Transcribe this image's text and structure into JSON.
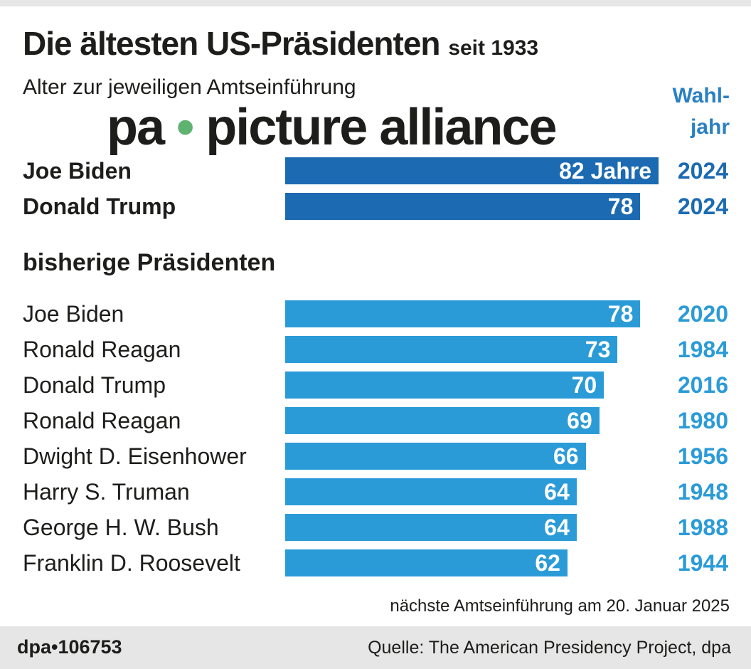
{
  "title": "Die ältesten US-Präsidenten",
  "title_suffix": "seit 1933",
  "subtitle": "Alter zur jeweiligen Amtseinführung",
  "year_header_line1": "Wahl-",
  "year_header_line2": "jahr",
  "section_label": "bisherige Präsidenten",
  "note": "nächste Amtseinführung am 20. Januar 2025",
  "footer": {
    "id": "dpa•106753",
    "source": "Quelle: The American Presidency Project, dpa"
  },
  "watermark": {
    "left": "pa",
    "dot": "•",
    "right": "picture alliance"
  },
  "colors": {
    "current_bar": "#1b6ab2",
    "past_bar": "#2b9bd8",
    "current_year": "#1b6ab2",
    "past_year": "#2b9bd8"
  },
  "chart_data": {
    "type": "bar",
    "orientation": "horizontal",
    "xlim": [
      0,
      82
    ],
    "unit_label": "Jahre",
    "groups": [
      {
        "name": "",
        "rows": [
          {
            "name": "Joe Biden",
            "value": 82,
            "label": "82 Jahre",
            "year": "2024"
          },
          {
            "name": "Donald Trump",
            "value": 78,
            "label": "78",
            "year": "2024"
          }
        ]
      },
      {
        "name": "bisherige Präsidenten",
        "rows": [
          {
            "name": "Joe Biden",
            "value": 78,
            "label": "78",
            "year": "2020"
          },
          {
            "name": "Ronald Reagan",
            "value": 73,
            "label": "73",
            "year": "1984"
          },
          {
            "name": "Donald Trump",
            "value": 70,
            "label": "70",
            "year": "2016"
          },
          {
            "name": "Ronald Reagan",
            "value": 69,
            "label": "69",
            "year": "1980"
          },
          {
            "name": "Dwight D. Eisenhower",
            "value": 66,
            "label": "66",
            "year": "1956"
          },
          {
            "name": "Harry S. Truman",
            "value": 64,
            "label": "64",
            "year": "1948"
          },
          {
            "name": "George H. W. Bush",
            "value": 64,
            "label": "64",
            "year": "1988"
          },
          {
            "name": "Franklin D. Roosevelt",
            "value": 62,
            "label": "62",
            "year": "1944"
          }
        ]
      }
    ]
  }
}
